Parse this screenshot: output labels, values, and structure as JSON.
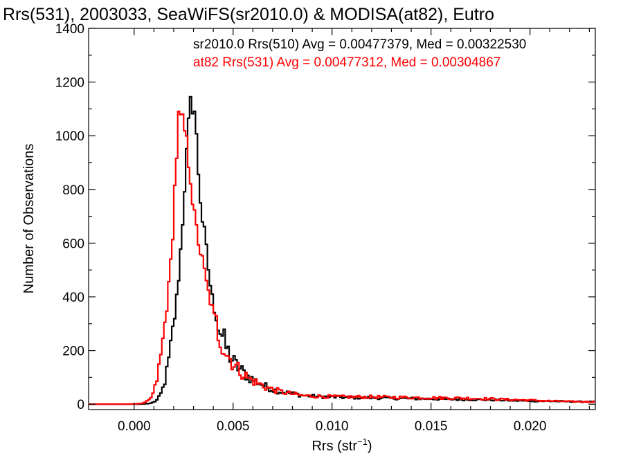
{
  "chart_data": {
    "type": "line",
    "title": "Rrs(531), 2003033, SeaWiFS(sr2010.0) & MODISA(at82), Eutro",
    "xlabel": "Rrs (str",
    "xlabel_sup": "−1",
    "xlabel_end": ")",
    "ylabel": "Number of Observations",
    "xlim": [
      -0.0023,
      0.0233
    ],
    "ylim": [
      -20,
      1400
    ],
    "xticks": [
      0.0,
      0.005,
      0.01,
      0.015,
      0.02
    ],
    "xtick_labels": [
      "0.000",
      "0.005",
      "0.010",
      "0.015",
      "0.020"
    ],
    "yticks": [
      0,
      200,
      400,
      600,
      800,
      1000,
      1200,
      1400
    ],
    "ytick_labels": [
      "0",
      "200",
      "400",
      "600",
      "800",
      "1000",
      "1200",
      "1400"
    ],
    "grid": false,
    "legend_placement": "top-right",
    "series": [
      {
        "label": "sr2010.0 Rrs(510) Avg = 0.00477379, Med = 0.00322530",
        "color": "#000000",
        "points": [
          [
            -0.0023,
            0
          ],
          [
            -0.0005,
            0
          ],
          [
            0.0,
            0
          ],
          [
            0.0005,
            1
          ],
          [
            0.0008,
            3
          ],
          [
            0.001,
            8
          ],
          [
            0.0012,
            18
          ],
          [
            0.0014,
            45
          ],
          [
            0.0016,
            100
          ],
          [
            0.0018,
            180
          ],
          [
            0.002,
            290
          ],
          [
            0.0022,
            430
          ],
          [
            0.0024,
            620
          ],
          [
            0.0025,
            760
          ],
          [
            0.0026,
            880
          ],
          [
            0.0027,
            960
          ],
          [
            0.0028,
            1080
          ],
          [
            0.0029,
            1120
          ],
          [
            0.003,
            1150
          ],
          [
            0.0031,
            1040
          ],
          [
            0.0032,
            920
          ],
          [
            0.0033,
            820
          ],
          [
            0.0034,
            720
          ],
          [
            0.0035,
            660
          ],
          [
            0.0036,
            600
          ],
          [
            0.0037,
            540
          ],
          [
            0.0038,
            470
          ],
          [
            0.0039,
            420
          ],
          [
            0.004,
            370
          ],
          [
            0.0042,
            310
          ],
          [
            0.0044,
            265
          ],
          [
            0.0046,
            220
          ],
          [
            0.0048,
            185
          ],
          [
            0.005,
            160
          ],
          [
            0.0052,
            140
          ],
          [
            0.0055,
            120
          ],
          [
            0.0058,
            100
          ],
          [
            0.0062,
            85
          ],
          [
            0.0066,
            68
          ],
          [
            0.007,
            55
          ],
          [
            0.0075,
            45
          ],
          [
            0.008,
            40
          ],
          [
            0.0085,
            33
          ],
          [
            0.009,
            30
          ],
          [
            0.01,
            27
          ],
          [
            0.011,
            25
          ],
          [
            0.012,
            24
          ],
          [
            0.013,
            22
          ],
          [
            0.014,
            21
          ],
          [
            0.015,
            20
          ],
          [
            0.016,
            18
          ],
          [
            0.017,
            17
          ],
          [
            0.018,
            16
          ],
          [
            0.019,
            14
          ],
          [
            0.02,
            12
          ],
          [
            0.021,
            11
          ],
          [
            0.022,
            10
          ],
          [
            0.023,
            9
          ],
          [
            0.0233,
            9
          ]
        ]
      },
      {
        "label": "at82 Rrs(531) Avg = 0.00477312, Med = 0.00304867",
        "color": "#ff0000",
        "points": [
          [
            -0.0023,
            0
          ],
          [
            -0.0005,
            0
          ],
          [
            0.0,
            1
          ],
          [
            0.0004,
            3
          ],
          [
            0.0006,
            8
          ],
          [
            0.0008,
            18
          ],
          [
            0.001,
            45
          ],
          [
            0.0012,
            110
          ],
          [
            0.0014,
            200
          ],
          [
            0.0016,
            330
          ],
          [
            0.0018,
            470
          ],
          [
            0.0019,
            580
          ],
          [
            0.002,
            720
          ],
          [
            0.0021,
            880
          ],
          [
            0.0022,
            1000
          ],
          [
            0.0023,
            1100
          ],
          [
            0.0024,
            1000
          ],
          [
            0.0025,
            1050
          ],
          [
            0.0026,
            980
          ],
          [
            0.0027,
            930
          ],
          [
            0.0028,
            900
          ],
          [
            0.0029,
            820
          ],
          [
            0.003,
            720
          ],
          [
            0.0031,
            660
          ],
          [
            0.0032,
            630
          ],
          [
            0.0033,
            590
          ],
          [
            0.0034,
            550
          ],
          [
            0.0035,
            510
          ],
          [
            0.0036,
            470
          ],
          [
            0.0037,
            430
          ],
          [
            0.0038,
            400
          ],
          [
            0.004,
            340
          ],
          [
            0.0042,
            280
          ],
          [
            0.0044,
            240
          ],
          [
            0.0046,
            200
          ],
          [
            0.0048,
            175
          ],
          [
            0.005,
            155
          ],
          [
            0.0052,
            135
          ],
          [
            0.0055,
            115
          ],
          [
            0.0058,
            95
          ],
          [
            0.0062,
            80
          ],
          [
            0.0066,
            65
          ],
          [
            0.007,
            55
          ],
          [
            0.0075,
            45
          ],
          [
            0.008,
            38
          ],
          [
            0.0085,
            32
          ],
          [
            0.009,
            30
          ],
          [
            0.01,
            28
          ],
          [
            0.011,
            27
          ],
          [
            0.012,
            27
          ],
          [
            0.013,
            26
          ],
          [
            0.014,
            25
          ],
          [
            0.015,
            24
          ],
          [
            0.016,
            23
          ],
          [
            0.017,
            22
          ],
          [
            0.018,
            20
          ],
          [
            0.019,
            17
          ],
          [
            0.02,
            15
          ],
          [
            0.021,
            12
          ],
          [
            0.022,
            10
          ],
          [
            0.023,
            9
          ],
          [
            0.0233,
            9
          ]
        ]
      }
    ]
  }
}
